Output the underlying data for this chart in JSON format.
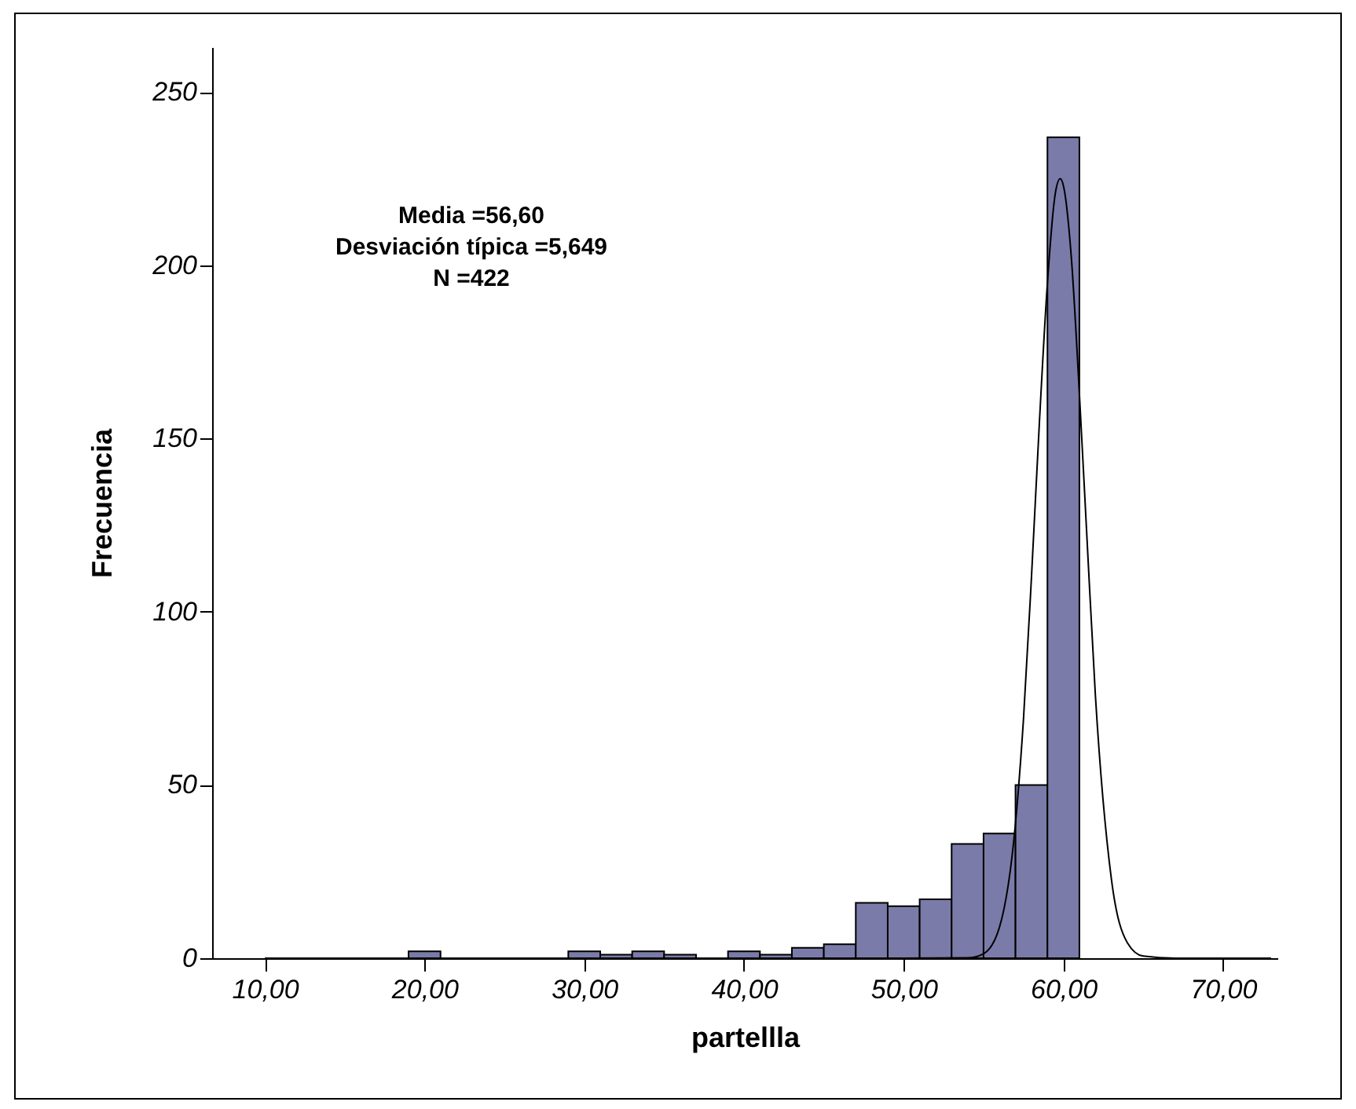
{
  "chart_data": {
    "type": "histogram",
    "xlabel": "partellla",
    "ylabel": "Frecuencia",
    "bins": [
      19,
      21,
      23,
      25,
      27,
      29,
      31,
      33,
      35,
      37,
      39,
      41,
      43,
      45,
      47,
      49,
      51,
      53,
      55,
      57,
      59,
      61
    ],
    "values": [
      2,
      0,
      0,
      0,
      0,
      2,
      1,
      2,
      1,
      0,
      2,
      1,
      3,
      4,
      16,
      15,
      17,
      33,
      36,
      50,
      237
    ],
    "color": "#7b7baa",
    "series": [
      {
        "type": "line",
        "color": "#000000",
        "x": [
          10,
          50,
          54,
          55,
          56,
          57,
          57.5,
          58,
          58.5,
          59,
          59.5,
          59.8,
          60,
          60.5,
          61,
          61.5,
          62,
          63,
          64,
          65,
          67,
          73
        ],
        "values": [
          0,
          0,
          0.1,
          1.3,
          9,
          39,
          69,
          110,
          155,
          195,
          221,
          225,
          223,
          202,
          163,
          119,
          76,
          23,
          4.5,
          0.6,
          0,
          0
        ]
      }
    ],
    "xlim": [
      6.7,
      73.4
    ],
    "ylim": [
      0,
      263
    ],
    "xticks": [
      {
        "value": 10,
        "label": "10,00"
      },
      {
        "value": 20,
        "label": "20,00"
      },
      {
        "value": 30,
        "label": "30,00"
      },
      {
        "value": 40,
        "label": "40,00"
      },
      {
        "value": 50,
        "label": "50,00"
      },
      {
        "value": 60,
        "label": "60,00"
      },
      {
        "value": 70,
        "label": "70,00"
      }
    ],
    "yticks": [
      0,
      50,
      100,
      150,
      200,
      250
    ],
    "annotations": [
      "Media =56,60",
      "Desviación típica =5,649",
      "N =422"
    ],
    "grid": false
  }
}
